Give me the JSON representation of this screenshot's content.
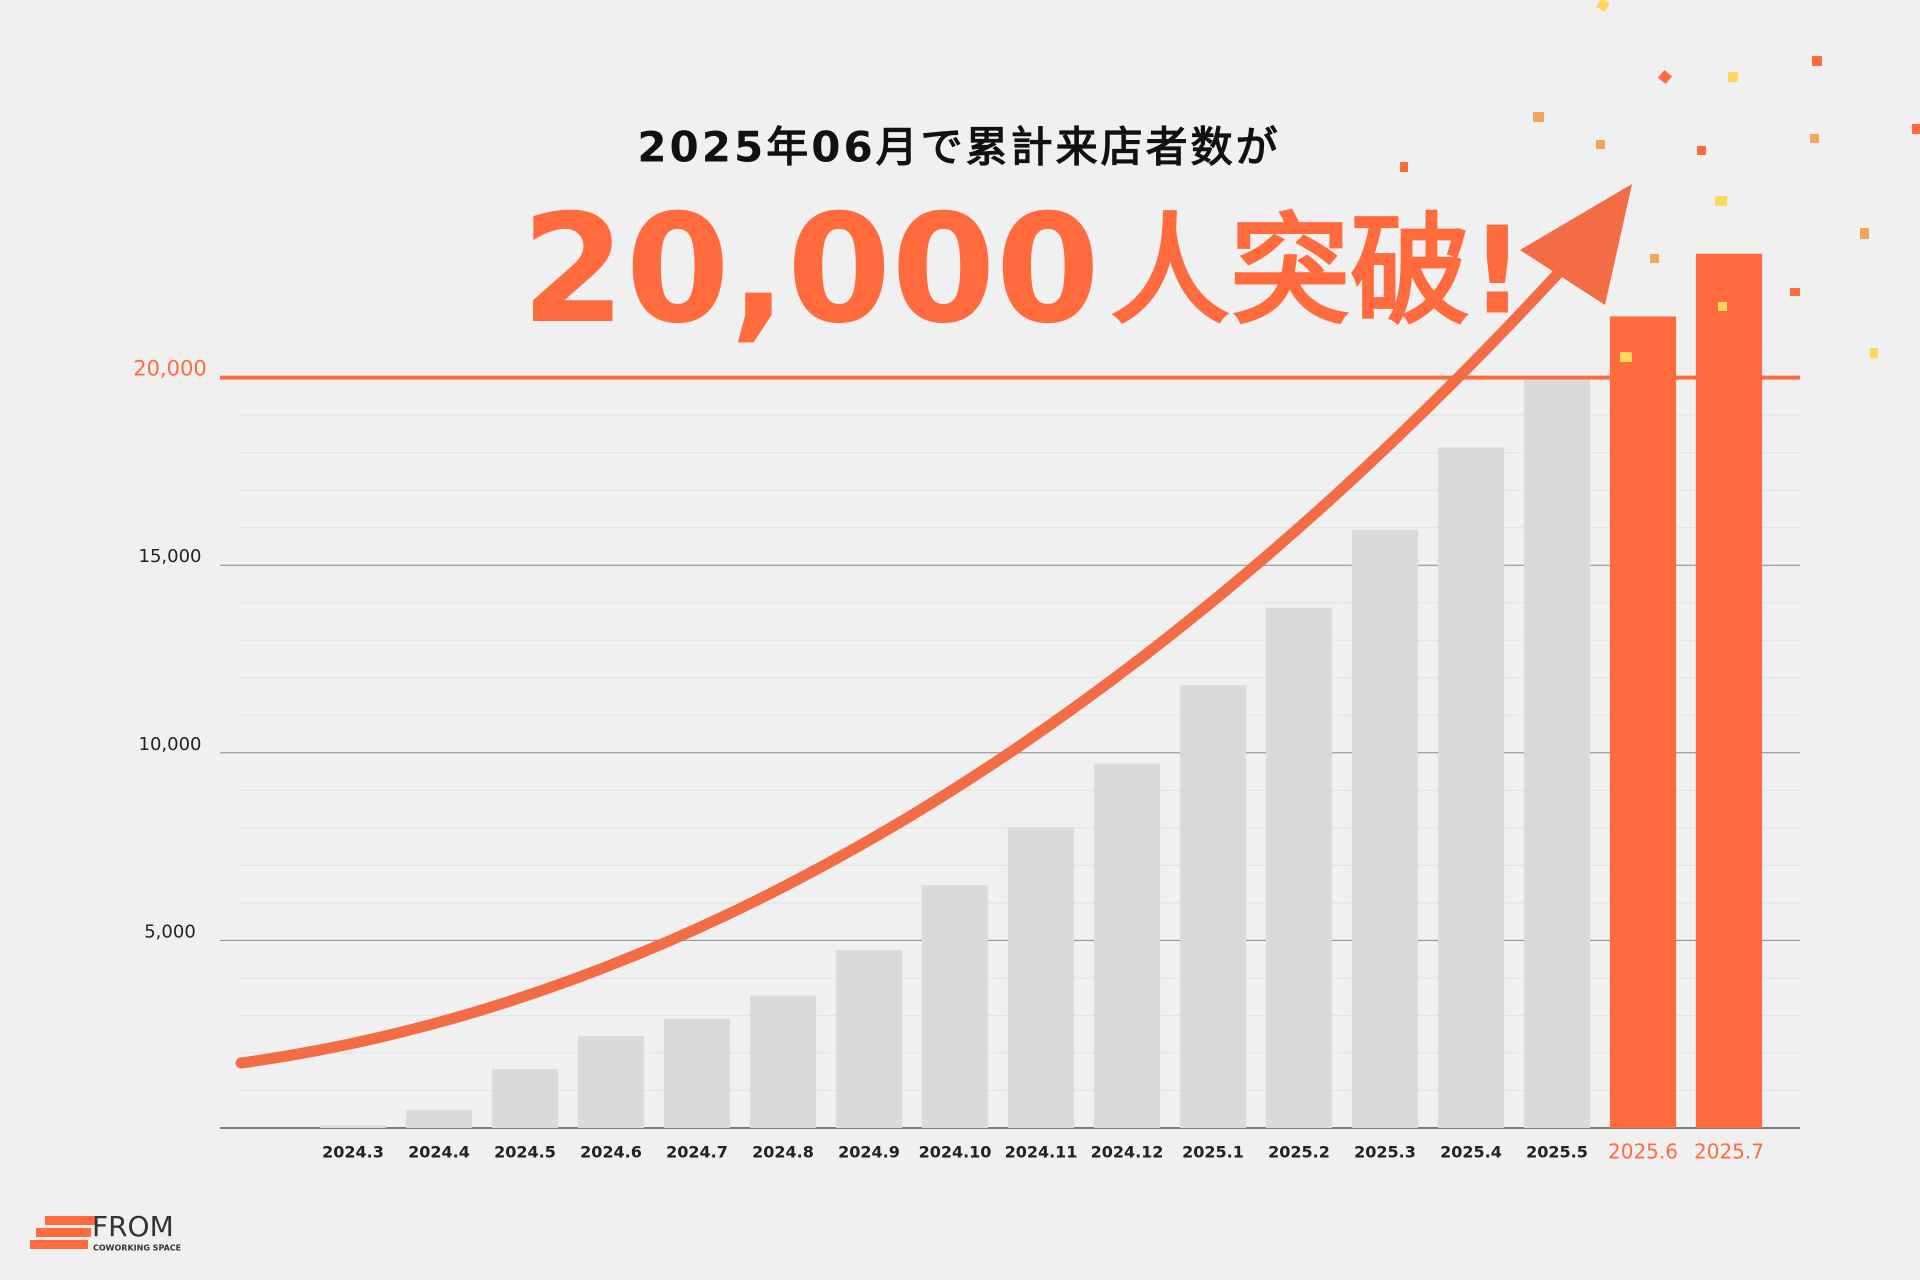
{
  "chart_data": {
    "type": "bar",
    "title": "2025年06月で累計来店者数が",
    "headline_number": "20,000",
    "headline_text": "人突破!",
    "categories": [
      "2024.3",
      "2024.4",
      "2024.5",
      "2024.6",
      "2024.7",
      "2024.8",
      "2024.9",
      "2024.10",
      "2024.11",
      "2024.12",
      "2025.1",
      "2025.2",
      "2025.3",
      "2025.4",
      "2025.5",
      "2025.6",
      "2025.7"
    ],
    "values": [
      70,
      490,
      1570,
      2450,
      2910,
      3530,
      4740,
      6470,
      8010,
      9710,
      11800,
      13860,
      15950,
      18140,
      19950,
      21630,
      23300
    ],
    "colors": [
      "#dadada",
      "#dadada",
      "#dadada",
      "#dadada",
      "#dadada",
      "#dadada",
      "#dadada",
      "#dadada",
      "#dadada",
      "#dadada",
      "#dadada",
      "#dadada",
      "#dadada",
      "#dadada",
      "#dadada",
      "#ff6b3d",
      "#ff6b3d"
    ],
    "ylim": [
      0,
      25000
    ],
    "yticks": [
      {
        "value": 5000,
        "label": "5,000"
      },
      {
        "value": 10000,
        "label": "10,000"
      },
      {
        "value": 15000,
        "label": "15,000"
      },
      {
        "value": 20000,
        "label": "20,000"
      }
    ],
    "ytick_colors": [
      "#222222",
      "#222222",
      "#222222",
      "#ff6b3d"
    ],
    "minor_yticks": [
      1000,
      2000,
      3000,
      4000,
      6000,
      7000,
      8000,
      9000,
      11000,
      12000,
      13000,
      14000,
      16000,
      17000,
      18000,
      19000
    ],
    "grid": true,
    "logo": "FROM",
    "logo_subtitle": "COWORKING SPACE"
  }
}
